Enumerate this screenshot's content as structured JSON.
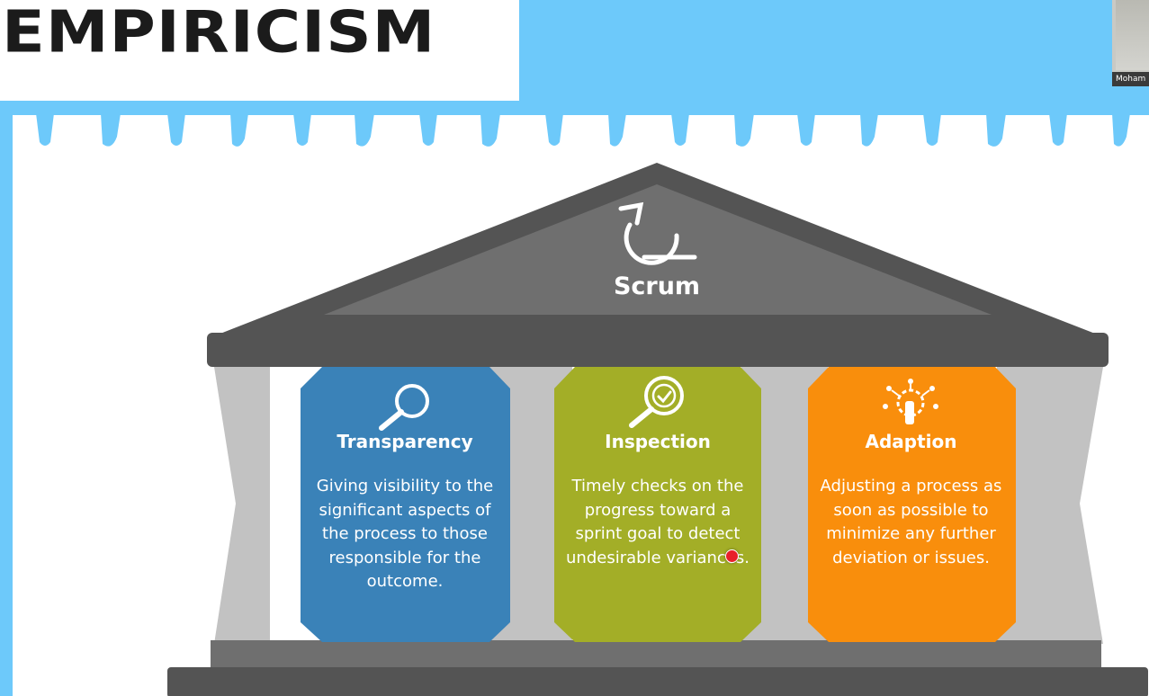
{
  "slide": {
    "title": "EMPIRICISM",
    "roof_label": "Scrum",
    "pillars": [
      {
        "title": "Transparency",
        "body": "Giving visibility to the significant aspects of the process to those responsible for the outcome.",
        "color": "#3a82b8",
        "icon": "magnifier-icon"
      },
      {
        "title": "Inspection",
        "body": "Timely checks on the progress toward a sprint goal to detect undesirable variances.",
        "color": "#a3ae27",
        "icon": "magnifier-check-icon"
      },
      {
        "title": "Adaption",
        "body": "Adjusting a process as soon as possible to minimize any further deviation or issues.",
        "color": "#f98e0c",
        "icon": "adapt-hand-icon"
      }
    ]
  },
  "video": {
    "participant_name": "Moham"
  },
  "colors": {
    "background": "#6dc9fa",
    "roof": "#545454",
    "pillar": "#c2c2c2"
  }
}
